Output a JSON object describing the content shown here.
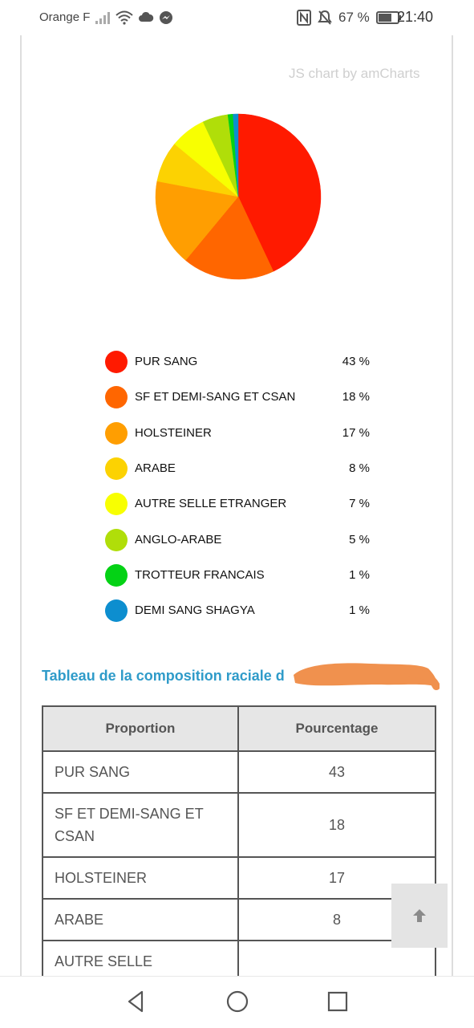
{
  "status_bar": {
    "carrier": "Orange F",
    "battery_percent": "67 %",
    "time": "21:40",
    "icons": [
      "signal-icon",
      "wifi-icon",
      "cloud-icon",
      "messenger-icon",
      "nfc-icon",
      "mute-icon",
      "battery-icon"
    ]
  },
  "chart": {
    "credit": "JS chart by amCharts"
  },
  "chart_data": {
    "type": "pie",
    "slices": [
      {
        "label": "PUR SANG",
        "value": 43,
        "value_label": "43 %",
        "color": "#ff1a00"
      },
      {
        "label": "SF ET DEMI-SANG ET CSAN",
        "value": 18,
        "value_label": "18 %",
        "color": "#ff6600"
      },
      {
        "label": "HOLSTEINER",
        "value": 17,
        "value_label": "17 %",
        "color": "#ff9e01"
      },
      {
        "label": "ARABE",
        "value": 8,
        "value_label": "8 %",
        "color": "#fcd202"
      },
      {
        "label": "AUTRE SELLE ETRANGER",
        "value": 7,
        "value_label": "7 %",
        "color": "#f8ff01"
      },
      {
        "label": "ANGLO-ARABE",
        "value": 5,
        "value_label": "5 %",
        "color": "#b0de09"
      },
      {
        "label": "TROTTEUR FRANCAIS",
        "value": 1,
        "value_label": "1 %",
        "color": "#04d215"
      },
      {
        "label": "DEMI SANG SHAGYA",
        "value": 1,
        "value_label": "1 %",
        "color": "#0d8ecf"
      }
    ],
    "legend_position": "bottom"
  },
  "table": {
    "title": "Tableau de la composition raciale d",
    "headers": [
      "Proportion",
      "Pourcentage"
    ],
    "rows": [
      {
        "name": "PUR SANG",
        "value": "43"
      },
      {
        "name": "SF ET DEMI-SANG ET CSAN",
        "value": "18"
      },
      {
        "name": "HOLSTEINER",
        "value": "17"
      },
      {
        "name": "ARABE",
        "value": "8"
      },
      {
        "name": "AUTRE SELLE",
        "value": ""
      }
    ]
  },
  "scroll_top_icon": "arrow-up-icon",
  "nav_bar": {
    "icons": [
      "back-icon",
      "home-icon",
      "recents-icon"
    ]
  }
}
